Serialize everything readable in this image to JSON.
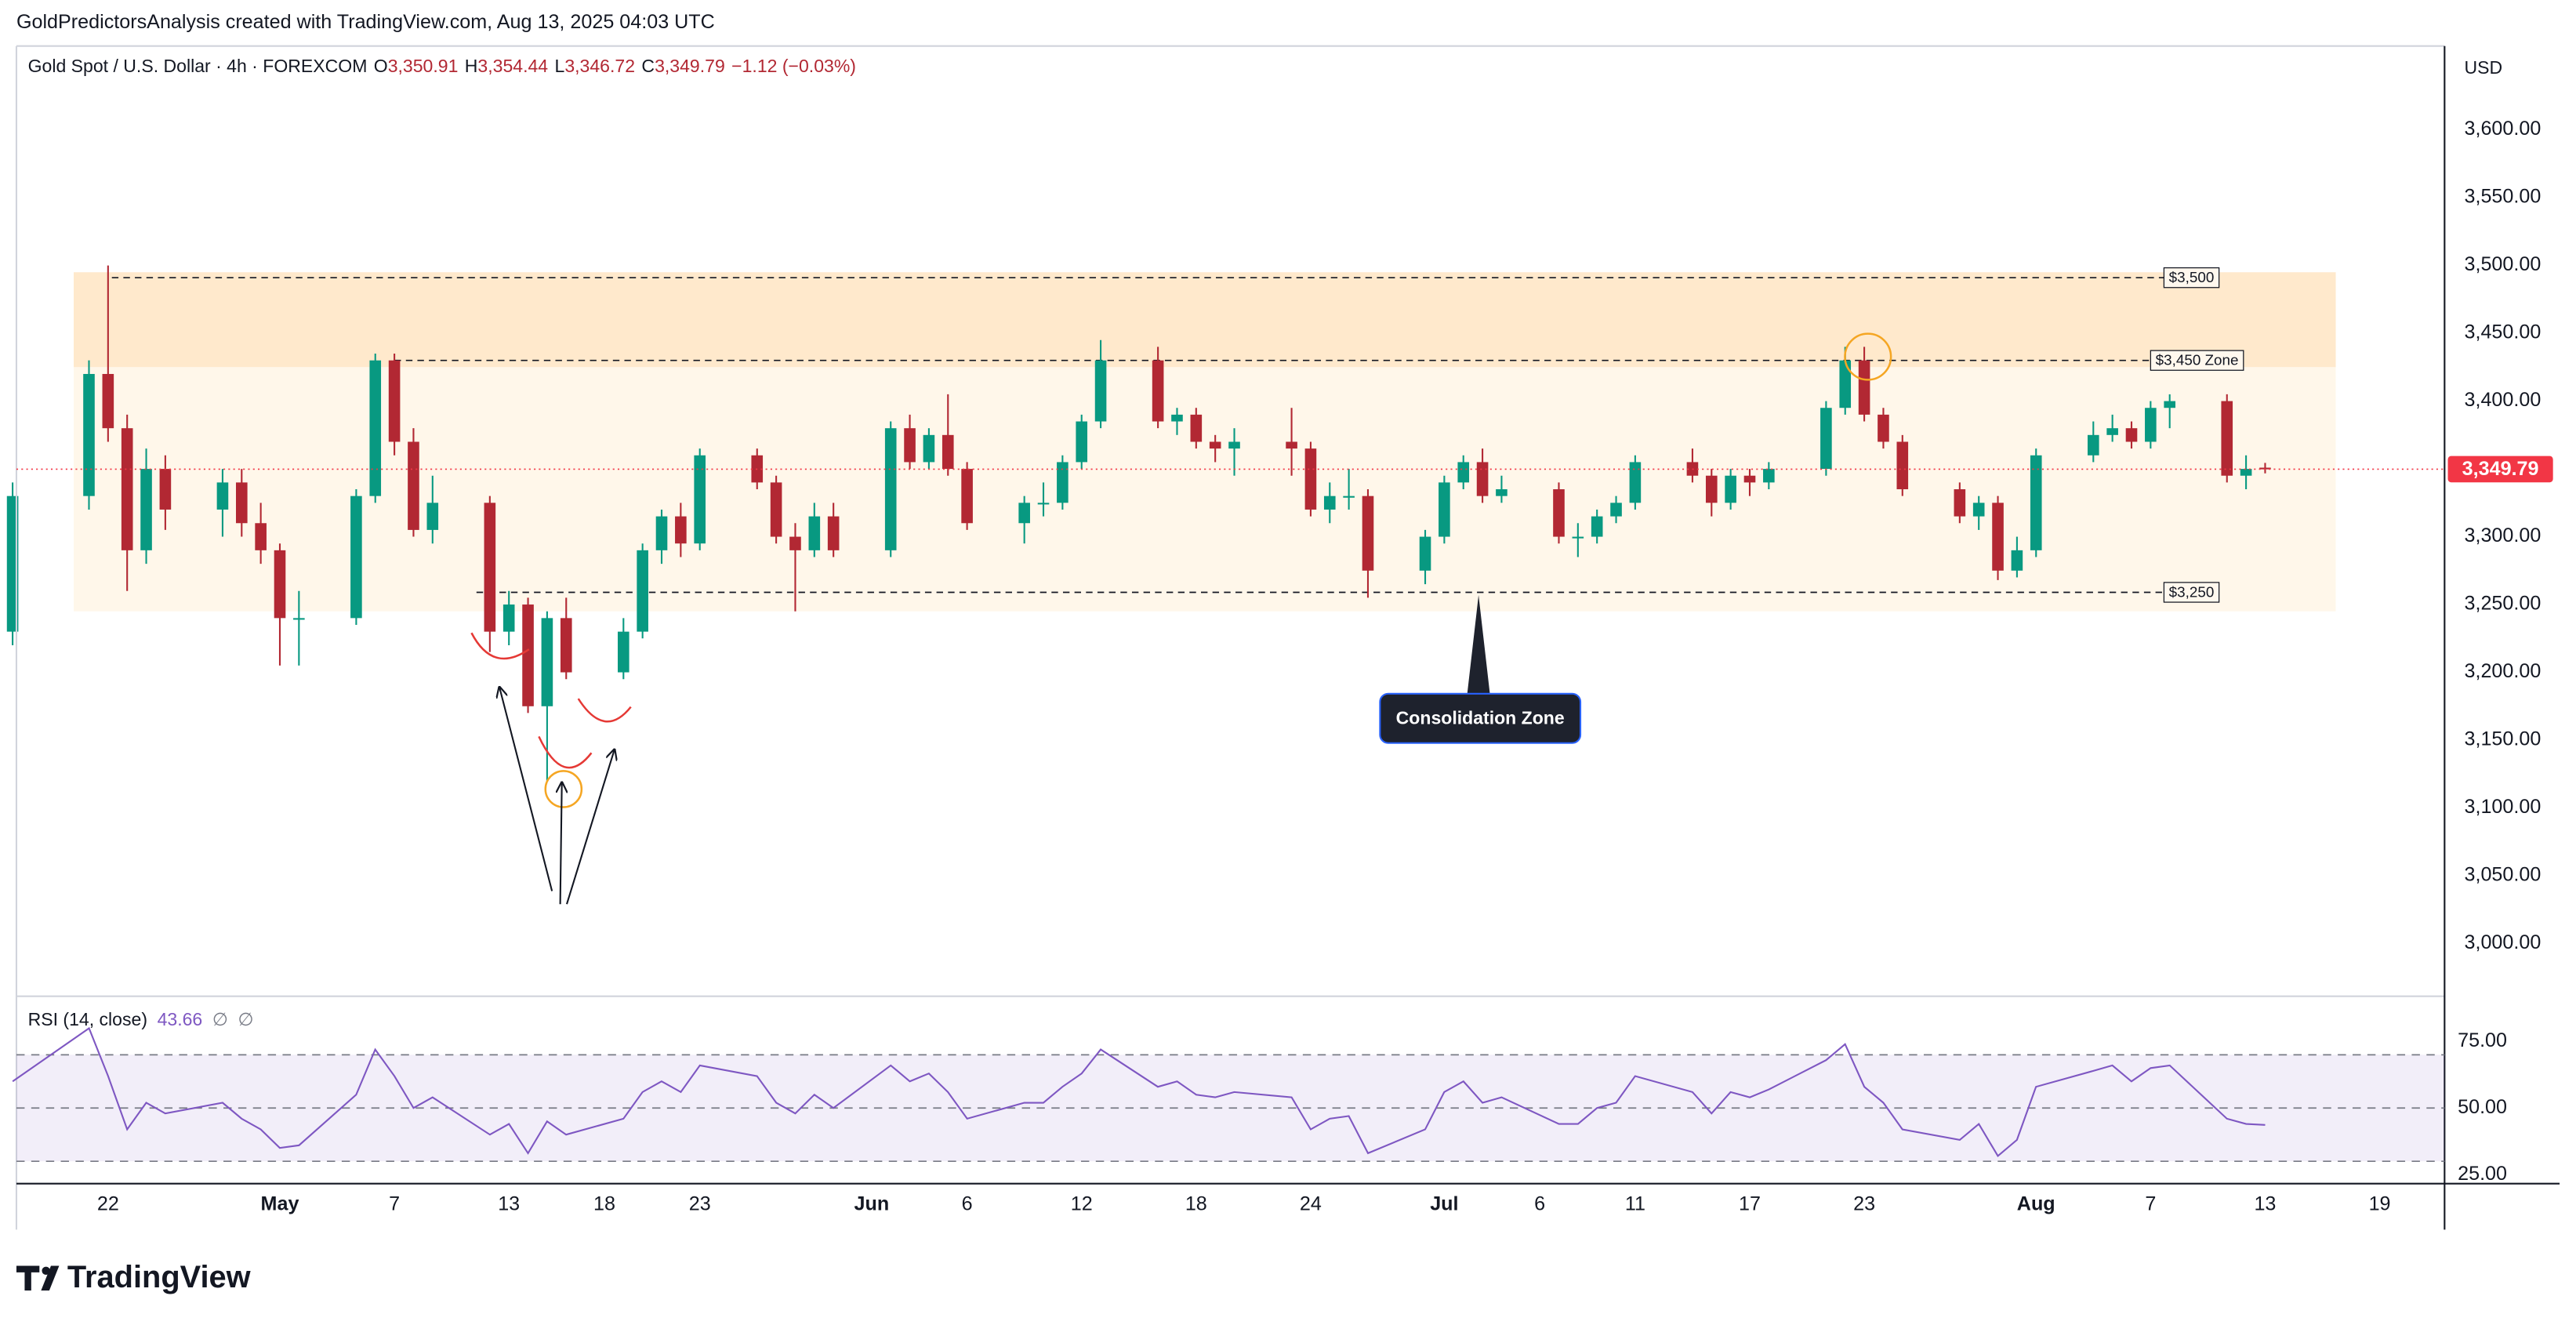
{
  "header": {
    "attribution": "GoldPredictorsAnalysis created with TradingView.com, Aug 13, 2025 04:03 UTC",
    "symbol": "Gold Spot / U.S. Dollar · 4h · FOREXCOM",
    "ohlc": [
      {
        "label": "O",
        "value": "3,350.91"
      },
      {
        "label": "H",
        "value": "3,354.44"
      },
      {
        "label": "L",
        "value": "3,346.72"
      },
      {
        "label": "C",
        "value": "3,349.79"
      }
    ],
    "change": "−1.12 (−0.03%)"
  },
  "chart_data": [
    {
      "type": "candlestick",
      "currency": "USD",
      "up_color": "#089981",
      "down_color": "#b22833",
      "x": [
        -5,
        -1,
        0,
        1,
        2,
        3,
        6,
        7,
        8,
        9,
        10,
        13,
        14,
        15,
        16,
        17,
        20,
        21,
        22,
        23,
        24,
        27,
        28,
        29,
        30,
        31,
        34,
        35,
        36,
        37,
        38,
        41,
        42,
        43,
        44,
        45,
        48,
        49,
        50,
        51,
        52,
        55,
        56,
        57,
        58,
        59,
        62,
        63,
        64,
        65,
        66,
        69,
        70,
        71,
        72,
        73,
        76,
        77,
        78,
        79,
        80,
        83,
        84,
        85,
        86,
        87,
        90,
        91,
        92,
        93,
        94,
        97,
        98,
        99,
        100,
        101,
        104,
        105,
        106,
        107,
        108,
        111,
        112,
        113
      ],
      "open": [
        3230,
        3330,
        3420,
        3380,
        3290,
        3350,
        3320,
        3340,
        3310,
        3290,
        3240,
        3240,
        3330,
        3430,
        3370,
        3305,
        3325,
        3230,
        3250,
        3175,
        3240,
        3200,
        3230,
        3290,
        3315,
        3295,
        3360,
        3340,
        3300,
        3290,
        3315,
        3290,
        3380,
        3355,
        3375,
        3350,
        3310,
        3325,
        3325,
        3355,
        3385,
        3430,
        3385,
        3390,
        3370,
        3365,
        3370,
        3365,
        3320,
        3330,
        3330,
        3275,
        3300,
        3340,
        3355,
        3330,
        3335,
        3300,
        3300,
        3315,
        3325,
        3355,
        3345,
        3325,
        3345,
        3340,
        3350,
        3395,
        3430,
        3390,
        3370,
        3335,
        3315,
        3325,
        3275,
        3290,
        3360,
        3375,
        3380,
        3370,
        3395,
        3400,
        3345,
        3350.91
      ],
      "high": [
        3340,
        3430,
        3500,
        3390,
        3365,
        3360,
        3350,
        3350,
        3325,
        3295,
        3260,
        3335,
        3435,
        3435,
        3380,
        3345,
        3330,
        3260,
        3255,
        3245,
        3255,
        3240,
        3295,
        3320,
        3325,
        3365,
        3365,
        3345,
        3310,
        3325,
        3325,
        3385,
        3390,
        3380,
        3405,
        3355,
        3330,
        3340,
        3360,
        3390,
        3445,
        3440,
        3395,
        3395,
        3375,
        3380,
        3395,
        3370,
        3340,
        3350,
        3335,
        3305,
        3345,
        3360,
        3365,
        3345,
        3340,
        3310,
        3320,
        3330,
        3360,
        3365,
        3350,
        3350,
        3350,
        3355,
        3400,
        3440,
        3440,
        3395,
        3375,
        3340,
        3330,
        3330,
        3300,
        3365,
        3385,
        3390,
        3385,
        3400,
        3405,
        3405,
        3360,
        3354.44
      ],
      "low": [
        3220,
        3320,
        3370,
        3260,
        3280,
        3305,
        3300,
        3300,
        3280,
        3205,
        3205,
        3235,
        3325,
        3360,
        3300,
        3295,
        3215,
        3220,
        3170,
        3120,
        3195,
        3195,
        3225,
        3280,
        3285,
        3290,
        3335,
        3295,
        3245,
        3285,
        3285,
        3285,
        3350,
        3350,
        3345,
        3305,
        3295,
        3315,
        3320,
        3350,
        3380,
        3380,
        3375,
        3365,
        3355,
        3345,
        3345,
        3315,
        3310,
        3320,
        3255,
        3265,
        3295,
        3335,
        3325,
        3325,
        3295,
        3285,
        3295,
        3310,
        3320,
        3340,
        3315,
        3320,
        3330,
        3335,
        3345,
        3390,
        3385,
        3365,
        3330,
        3310,
        3305,
        3268,
        3270,
        3285,
        3355,
        3370,
        3365,
        3365,
        3380,
        3340,
        3335,
        3346.72
      ],
      "close": [
        3330,
        3420,
        3380,
        3290,
        3350,
        3320,
        3340,
        3310,
        3290,
        3240,
        3240,
        3330,
        3430,
        3370,
        3305,
        3325,
        3230,
        3250,
        3175,
        3240,
        3200,
        3230,
        3290,
        3315,
        3295,
        3360,
        3340,
        3300,
        3290,
        3315,
        3290,
        3380,
        3355,
        3375,
        3350,
        3310,
        3325,
        3325,
        3355,
        3385,
        3430,
        3385,
        3390,
        3370,
        3365,
        3370,
        3365,
        3320,
        3330,
        3330,
        3275,
        3300,
        3340,
        3355,
        3330,
        3335,
        3300,
        3300,
        3315,
        3325,
        3355,
        3345,
        3325,
        3345,
        3340,
        3350,
        3395,
        3430,
        3390,
        3370,
        3335,
        3315,
        3325,
        3275,
        3290,
        3360,
        3375,
        3380,
        3370,
        3395,
        3400,
        3345,
        3350,
        3349.79
      ],
      "xlim": [
        -4.8,
        122.4
      ],
      "xticks": [
        {
          "value": 0,
          "label": "22"
        },
        {
          "value": 9,
          "label": "May"
        },
        {
          "value": 15,
          "label": "7"
        },
        {
          "value": 21,
          "label": "13"
        },
        {
          "value": 26,
          "label": "18"
        },
        {
          "value": 31,
          "label": "23"
        },
        {
          "value": 40,
          "label": "Jun"
        },
        {
          "value": 45,
          "label": "6"
        },
        {
          "value": 51,
          "label": "12"
        },
        {
          "value": 57,
          "label": "18"
        },
        {
          "value": 63,
          "label": "24"
        },
        {
          "value": 70,
          "label": "Jul"
        },
        {
          "value": 75,
          "label": "6"
        },
        {
          "value": 80,
          "label": "11"
        },
        {
          "value": 86,
          "label": "17"
        },
        {
          "value": 92,
          "label": "23"
        },
        {
          "value": 101,
          "label": "Aug"
        },
        {
          "value": 107,
          "label": "7"
        },
        {
          "value": 113,
          "label": "13"
        },
        {
          "value": 119,
          "label": "19"
        }
      ],
      "ylim": [
        2962.4,
        3661.8
      ],
      "yticks": [
        {
          "value": 3000,
          "label": "3,000.00"
        },
        {
          "value": 3050,
          "label": "3,050.00"
        },
        {
          "value": 3100,
          "label": "3,100.00"
        },
        {
          "value": 3150,
          "label": "3,150.00"
        },
        {
          "value": 3200,
          "label": "3,200.00"
        },
        {
          "value": 3250,
          "label": "3,250.00"
        },
        {
          "value": 3300,
          "label": "3,300.00"
        },
        {
          "value": 3350,
          "label": "3,350.00"
        },
        {
          "value": 3400,
          "label": "3,400.00"
        },
        {
          "value": 3450,
          "label": "3,450.00"
        },
        {
          "value": 3500,
          "label": "3,500.00"
        },
        {
          "value": 3550,
          "label": "3,550.00"
        },
        {
          "value": 3600,
          "label": "3,600.00"
        }
      ],
      "last_price": {
        "value": 3349.79,
        "label": "3,349.79",
        "color": "#f23645"
      },
      "zones": [
        {
          "xlim": [
            -1.8,
            116.7
          ],
          "ylim": [
            3425,
            3495
          ],
          "color": "#ffe9cc"
        },
        {
          "xlim": [
            -1.8,
            116.7
          ],
          "ylim": [
            3245,
            3425
          ],
          "color": "#fff7ea"
        }
      ],
      "levels": [
        {
          "label": "$3,500",
          "value": 3491,
          "xlim": [
            0.2,
            107.7
          ]
        },
        {
          "label": "$3,450 Zone",
          "value": 3430,
          "xlim": [
            15,
            107
          ]
        },
        {
          "label": "$3,250",
          "value": 3259,
          "xlim": [
            19.3,
            107.7
          ]
        }
      ],
      "annotations": [
        {
          "text": "Consolidation Zone"
        }
      ]
    },
    {
      "type": "line",
      "title": "RSI (14, close)",
      "value_label": "43.66",
      "extras": [
        "∅",
        "∅"
      ],
      "color": "#7e57c2",
      "values": [
        60,
        80,
        62,
        42,
        52,
        48,
        52,
        46,
        42,
        35,
        36,
        55,
        72,
        62,
        50,
        54,
        40,
        44,
        33,
        45,
        40,
        46,
        56,
        60,
        56,
        66,
        62,
        52,
        48,
        55,
        50,
        66,
        60,
        63,
        56,
        46,
        52,
        52,
        58,
        63,
        72,
        58,
        60,
        55,
        54,
        56,
        54,
        42,
        46,
        47,
        33,
        42,
        56,
        60,
        52,
        54,
        44,
        44,
        50,
        52,
        62,
        56,
        48,
        56,
        54,
        57,
        68,
        74,
        58,
        52,
        42,
        38,
        44,
        32,
        38,
        58,
        64,
        66,
        60,
        65,
        66,
        46,
        44,
        43.66
      ],
      "ylim": [
        21.6,
        91.4
      ],
      "yticks": [
        {
          "value": 75,
          "label": "75.00"
        },
        {
          "value": 50,
          "label": "50.00"
        },
        {
          "value": 25,
          "label": "25.00"
        }
      ],
      "bands": [
        30,
        70
      ],
      "middle": 50
    }
  ],
  "footer": {
    "logo": "TradingView"
  }
}
